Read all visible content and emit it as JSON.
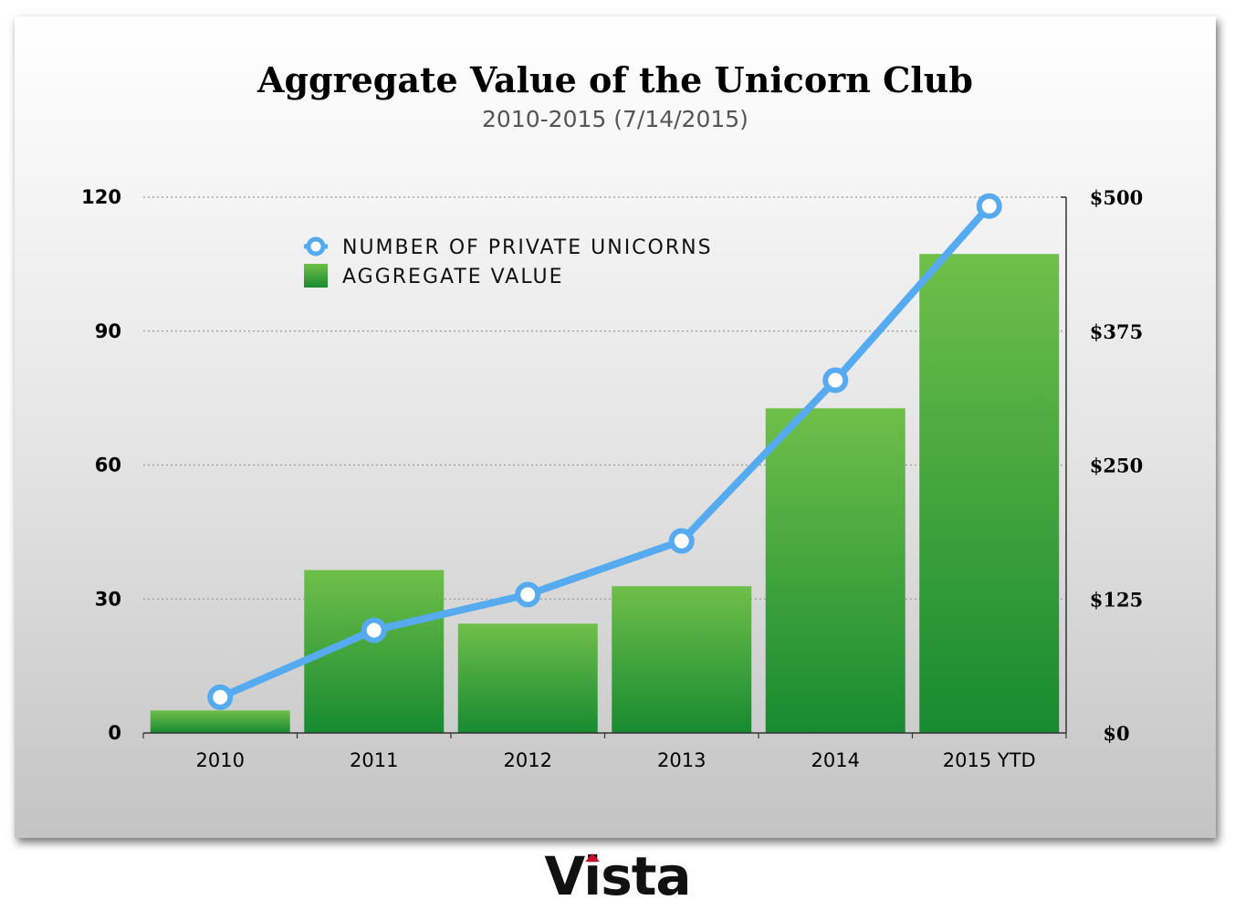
{
  "chart_data": {
    "type": "bar",
    "title": "Aggregate Value of the Unicorn Club",
    "subtitle": "2010-2015 (7/14/2015)",
    "categories": [
      "2010",
      "2011",
      "2012",
      "2013",
      "2014",
      "2015 YTD"
    ],
    "y_left": {
      "ylim": [
        0,
        120
      ],
      "ticks": [
        "0",
        "30",
        "60",
        "90",
        "120"
      ],
      "tick_values": [
        0,
        30,
        60,
        90,
        120
      ]
    },
    "y_right": {
      "ylim": [
        0,
        500
      ],
      "ticks": [
        "$0",
        "$125",
        "$250",
        "$375",
        "$500"
      ],
      "tick_values": [
        0,
        125,
        250,
        375,
        500
      ]
    },
    "grid": true,
    "legend_position": "top-left",
    "series": [
      {
        "name": "NUMBER OF PRIVATE UNICORNS",
        "type": "line",
        "axis": "left",
        "color": "#55aaf0",
        "values": [
          8,
          23,
          31,
          43,
          79,
          118
        ]
      },
      {
        "name": "AGGREGATE VALUE",
        "type": "bar",
        "axis": "right",
        "color": "#3aa142",
        "values": [
          21,
          152,
          102,
          137,
          303,
          447
        ]
      }
    ]
  },
  "logo": {
    "prefix": "V",
    "accent": "i",
    "suffix": "sta"
  }
}
